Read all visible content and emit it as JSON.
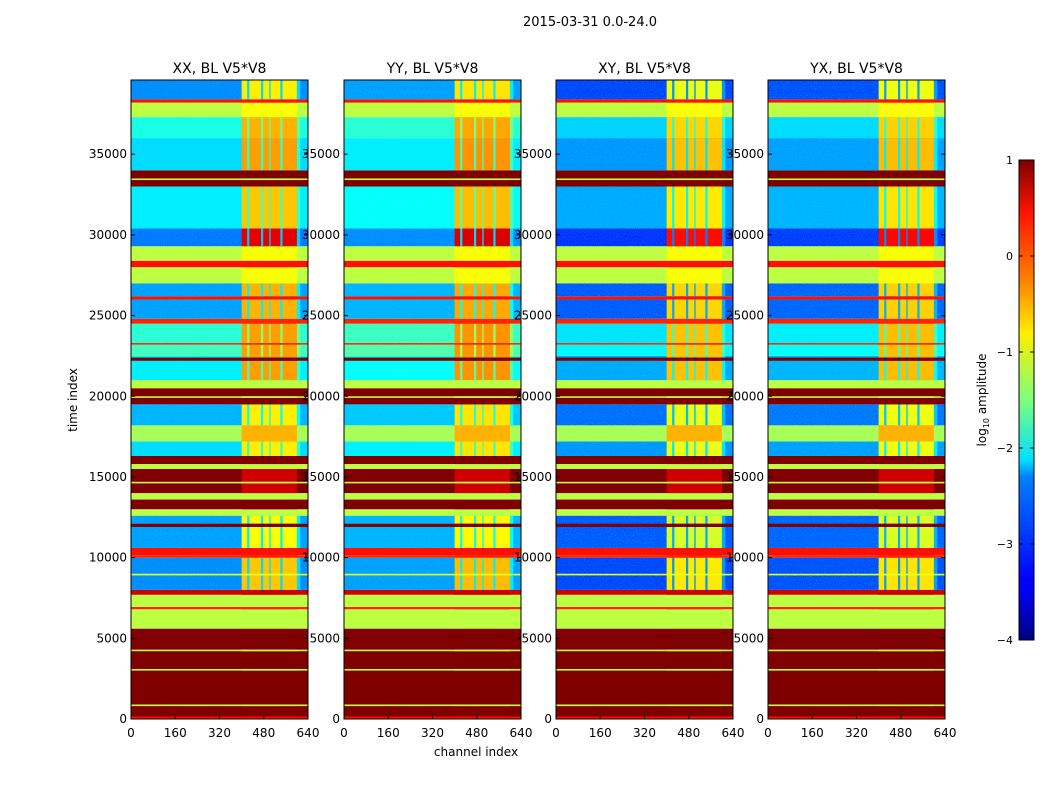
{
  "chart_data": {
    "type": "heatmap",
    "title": "2015-03-31 0.0-24.0",
    "xlabel": "channel index",
    "ylabel": "time index",
    "xlim": [
      0,
      640
    ],
    "ylim": [
      0,
      39600
    ],
    "xticks": [
      0,
      160,
      320,
      480,
      640
    ],
    "yticks": [
      0,
      5000,
      10000,
      15000,
      20000,
      25000,
      30000,
      35000
    ],
    "colormap": "jet",
    "colorbar": {
      "label": "log10 amplitude",
      "label_main": "log",
      "label_sub": "10",
      "label_rest": " amplitude",
      "range": [
        -4,
        1
      ],
      "ticks": [
        1,
        0,
        -1,
        -2,
        -3,
        -4
      ]
    },
    "rfi_channel_range": [
      400,
      600
    ],
    "rfi_gaps": [
      [
        420,
        428
      ],
      [
        470,
        478
      ],
      [
        500,
        505
      ],
      [
        540,
        548
      ],
      [
        600,
        612
      ]
    ],
    "panels": [
      {
        "title": "XX, BL V5*V8",
        "noise_offset": 0
      },
      {
        "title": "YY, BL V5*V8",
        "noise_offset": 0.1
      },
      {
        "title": "XY, BL V5*V8",
        "noise_offset": -0.35
      },
      {
        "title": "YX, BL V5*V8",
        "noise_offset": -0.3
      }
    ],
    "bands_note": "t_start, t_end, background log10 amplitude, RFI-channel log10 amplitude, noisy",
    "bands": [
      [
        0,
        5600,
        1,
        1,
        false
      ],
      [
        0,
        150,
        0.3,
        0.3,
        false
      ],
      [
        800,
        900,
        -1.2,
        -1.2,
        false
      ],
      [
        3000,
        3100,
        -1.2,
        -1.2,
        false
      ],
      [
        4200,
        4300,
        -1.2,
        -1.2,
        false
      ],
      [
        5600,
        6800,
        -1.2,
        -1.2,
        false
      ],
      [
        6800,
        6950,
        0.2,
        0.2,
        false
      ],
      [
        6950,
        7700,
        -1.2,
        -1.2,
        false
      ],
      [
        7700,
        8000,
        0.6,
        0.6,
        false
      ],
      [
        8000,
        10000,
        -2.7,
        -0.6,
        true
      ],
      [
        8900,
        9000,
        -1.0,
        -1.0,
        false
      ],
      [
        10000,
        10150,
        0.2,
        0.2,
        false
      ],
      [
        10150,
        10600,
        0.3,
        0.3,
        false
      ],
      [
        10600,
        12600,
        -2.6,
        -0.9,
        true
      ],
      [
        11900,
        12100,
        1,
        1,
        false
      ],
      [
        12600,
        13000,
        -1.2,
        -1.2,
        false
      ],
      [
        13000,
        13600,
        1,
        1,
        false
      ],
      [
        13600,
        14000,
        -1.2,
        -1.2,
        false
      ],
      [
        14000,
        15500,
        1,
        0.6,
        false
      ],
      [
        14600,
        14700,
        -1.2,
        -1.2,
        false
      ],
      [
        15500,
        15800,
        -1.2,
        -1.2,
        false
      ],
      [
        15800,
        16300,
        1,
        1,
        false
      ],
      [
        16300,
        17200,
        -2.3,
        -0.8,
        true
      ],
      [
        17200,
        18200,
        -1.3,
        -0.5,
        false
      ],
      [
        18200,
        19500,
        -2.5,
        -0.8,
        true
      ],
      [
        19500,
        20500,
        1,
        1,
        false
      ],
      [
        19900,
        20000,
        -1.2,
        -1.2,
        false
      ],
      [
        20500,
        21000,
        -1.2,
        -1.2,
        false
      ],
      [
        21000,
        22500,
        -2.2,
        -0.4,
        true
      ],
      [
        22200,
        22400,
        1,
        1,
        false
      ],
      [
        22500,
        23200,
        -1.8,
        -0.4,
        true
      ],
      [
        23200,
        23300,
        0.2,
        0.2,
        false
      ],
      [
        23300,
        24500,
        -1.9,
        -0.4,
        true
      ],
      [
        24500,
        24800,
        0.2,
        0.2,
        false
      ],
      [
        24800,
        26000,
        -2.6,
        -0.5,
        true
      ],
      [
        26000,
        26200,
        0.3,
        0.3,
        false
      ],
      [
        26200,
        27000,
        -2.6,
        -0.5,
        true
      ],
      [
        27000,
        28000,
        -1.2,
        -0.9,
        false
      ],
      [
        28000,
        28400,
        0.3,
        0.3,
        false
      ],
      [
        28400,
        29300,
        -1.2,
        -0.9,
        false
      ],
      [
        29300,
        30400,
        -2.8,
        0.5,
        true
      ],
      [
        30400,
        33000,
        -2.2,
        -0.6,
        true
      ],
      [
        33000,
        34000,
        1,
        1,
        false
      ],
      [
        33400,
        33500,
        -1.2,
        -1.2,
        false
      ],
      [
        34000,
        36000,
        -2.3,
        -0.4,
        true
      ],
      [
        36000,
        37300,
        -2.0,
        -0.5,
        true
      ],
      [
        37300,
        38200,
        -1.2,
        -0.9,
        false
      ],
      [
        38200,
        38400,
        0.3,
        0.3,
        false
      ],
      [
        38400,
        39600,
        -2.7,
        -0.8,
        true
      ]
    ]
  }
}
